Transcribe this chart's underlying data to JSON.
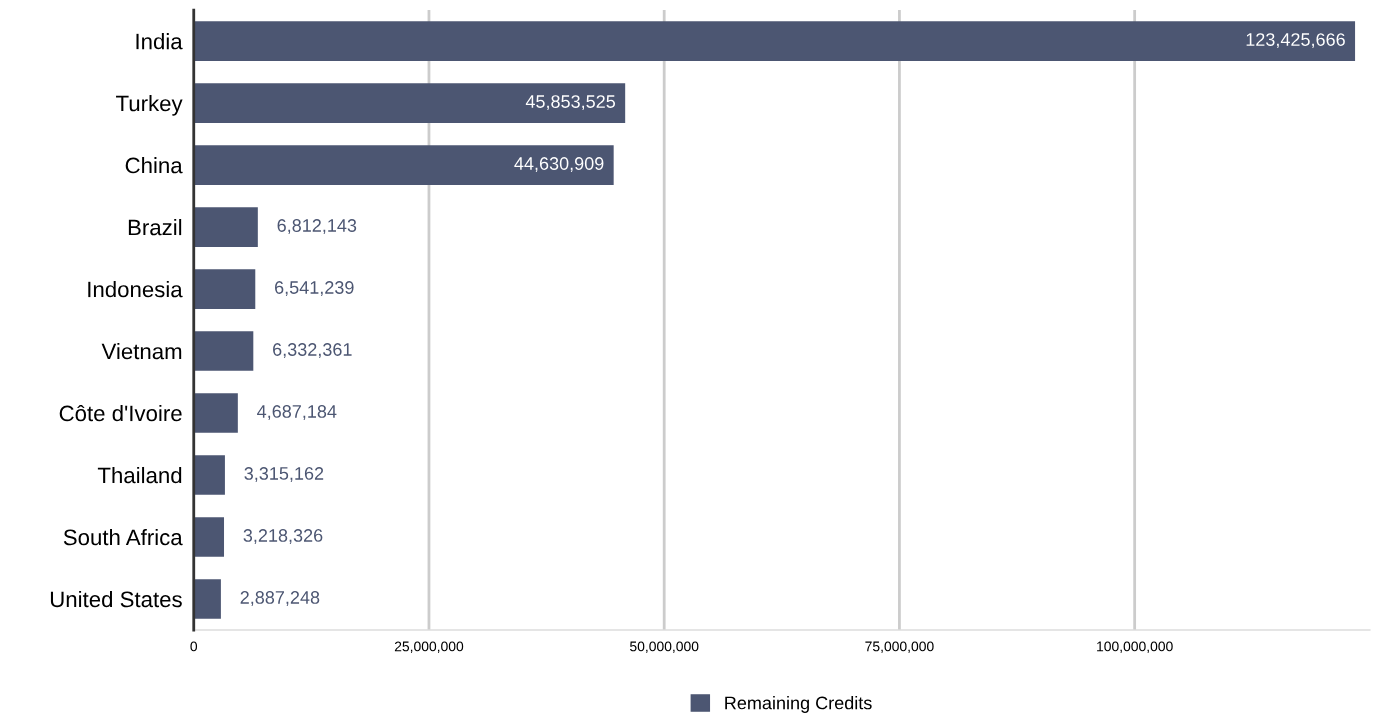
{
  "chart_data": {
    "type": "bar",
    "orientation": "horizontal",
    "categories": [
      "India",
      "Turkey",
      "China",
      "Brazil",
      "Indonesia",
      "Vietnam",
      "Côte d'Ivoire",
      "Thailand",
      "South Africa",
      "United States"
    ],
    "series": [
      {
        "name": "Remaining Credits",
        "color": "#4c5672",
        "values": [
          123425666,
          45853525,
          44630909,
          6812143,
          6541239,
          6332361,
          4687184,
          3315162,
          3218326,
          2887248
        ],
        "value_labels": [
          "123,425,666",
          "45,853,525",
          "44,630,909",
          "6,812,143",
          "6,541,239",
          "6,332,361",
          "4,687,184",
          "3,315,162",
          "3,218,326",
          "2,887,248"
        ]
      }
    ],
    "xlim": [
      0,
      125000000
    ],
    "xticks": [
      {
        "value": 0,
        "label": "0"
      },
      {
        "value": 25000000,
        "label": "25,000,000"
      },
      {
        "value": 50000000,
        "label": "50,000,000"
      },
      {
        "value": 75000000,
        "label": "75,000,000"
      },
      {
        "value": 100000000,
        "label": "100,000,000"
      }
    ],
    "grid": "x",
    "legend": "bottom"
  }
}
